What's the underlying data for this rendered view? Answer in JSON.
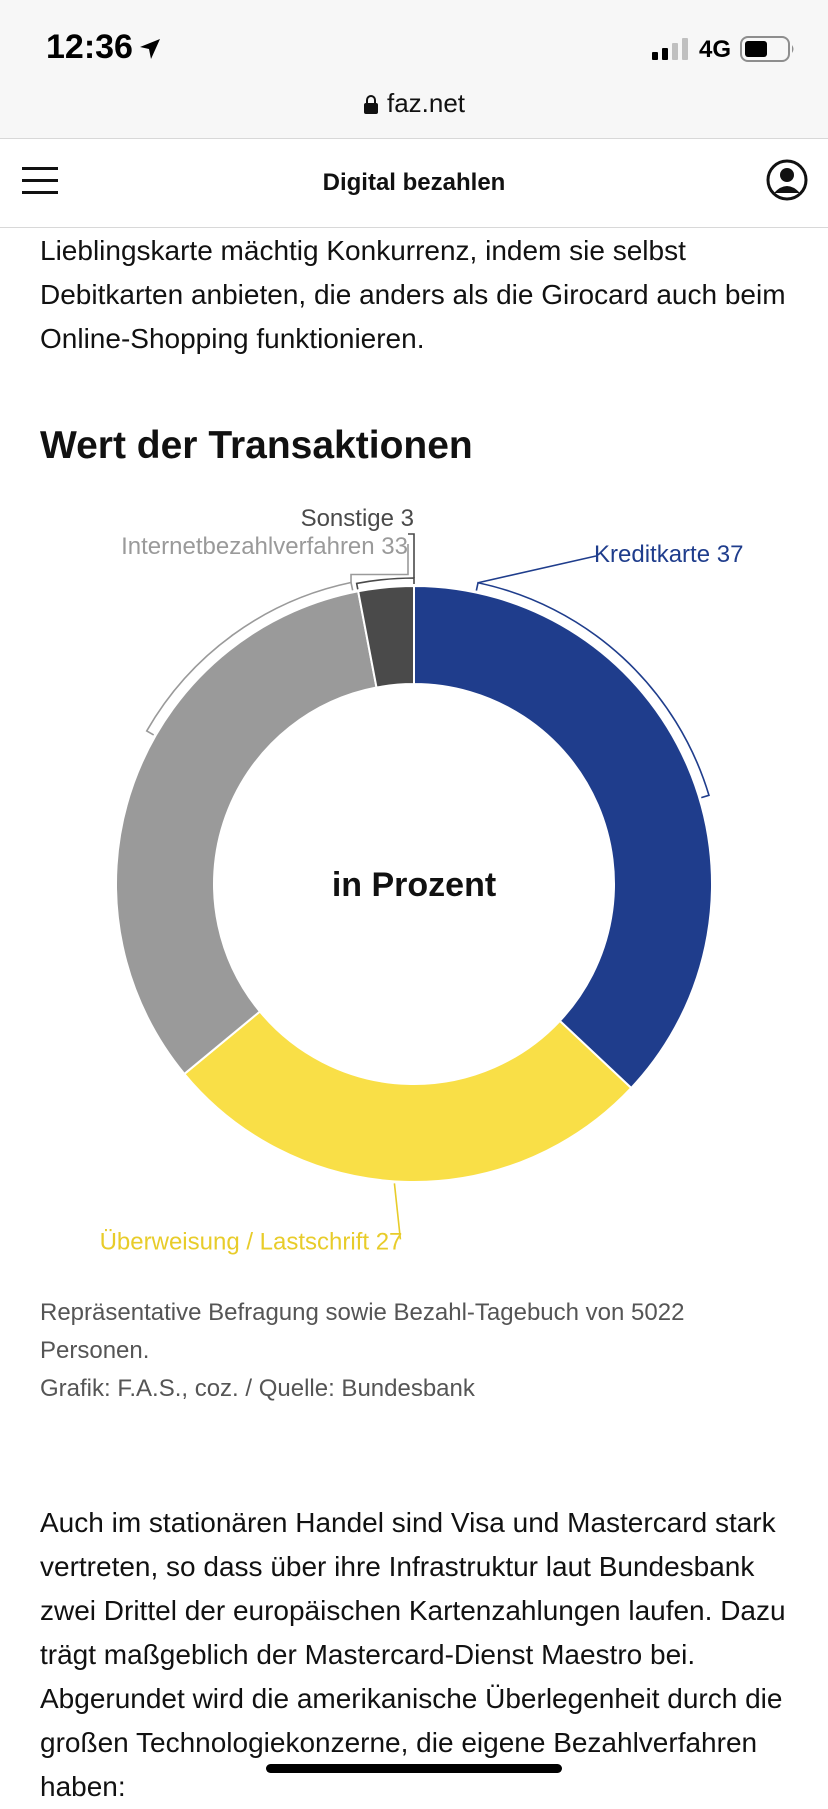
{
  "status_bar": {
    "time": "12:36",
    "network": "4G"
  },
  "url_bar": {
    "domain": "faz.net"
  },
  "header": {
    "title": "Digital bezahlen"
  },
  "article": {
    "paragraph_top": "Lieblingskarte mächtig Konkurrenz, indem sie selbst Debitkarten anbieten, die anders als die Girocard auch beim Online-Shopping funktionieren.",
    "chart_heading": "Wert der Transaktionen",
    "caption_line1": "Repräsentative Befragung sowie Bezahl-Tagebuch von 5022 Personen.",
    "caption_line2": "Grafik: F.A.S., coz. / Quelle: Bundesbank",
    "paragraph_bottom": "Auch im stationären Handel sind Visa und Mastercard stark vertreten, so dass über ihre Infrastruktur laut Bundesbank zwei Drittel der europäischen Kartenzahlungen laufen. Dazu trägt maßgeblich der Mastercard-Dienst Maestro bei. Abgerundet wird die amerikanische Überlegenheit durch die großen Technologiekonzerne, die eigene Bezahlverfahren haben:"
  },
  "chart_data": {
    "type": "pie",
    "variant": "donut",
    "title": "Wert der Transaktionen",
    "center_label": "in Prozent",
    "slices": [
      {
        "label": "Kreditkarte",
        "value": 37,
        "color": "#1f3d8c"
      },
      {
        "label": "Überweisung / Lastschrift",
        "value": 27,
        "color": "#f9df47"
      },
      {
        "label": "Internetbezahlverfahren",
        "value": 33,
        "color": "#9a9a9a"
      },
      {
        "label": "Sonstige",
        "value": 3,
        "color": "#4a4a4a"
      }
    ],
    "label_colors": {
      "Kreditkarte": "#1f3d8c",
      "Überweisung / Lastschrift": "#e8cc2a",
      "Internetbezahlverfahren": "#9a9a9a",
      "Sonstige": "#4a4a4a"
    }
  }
}
